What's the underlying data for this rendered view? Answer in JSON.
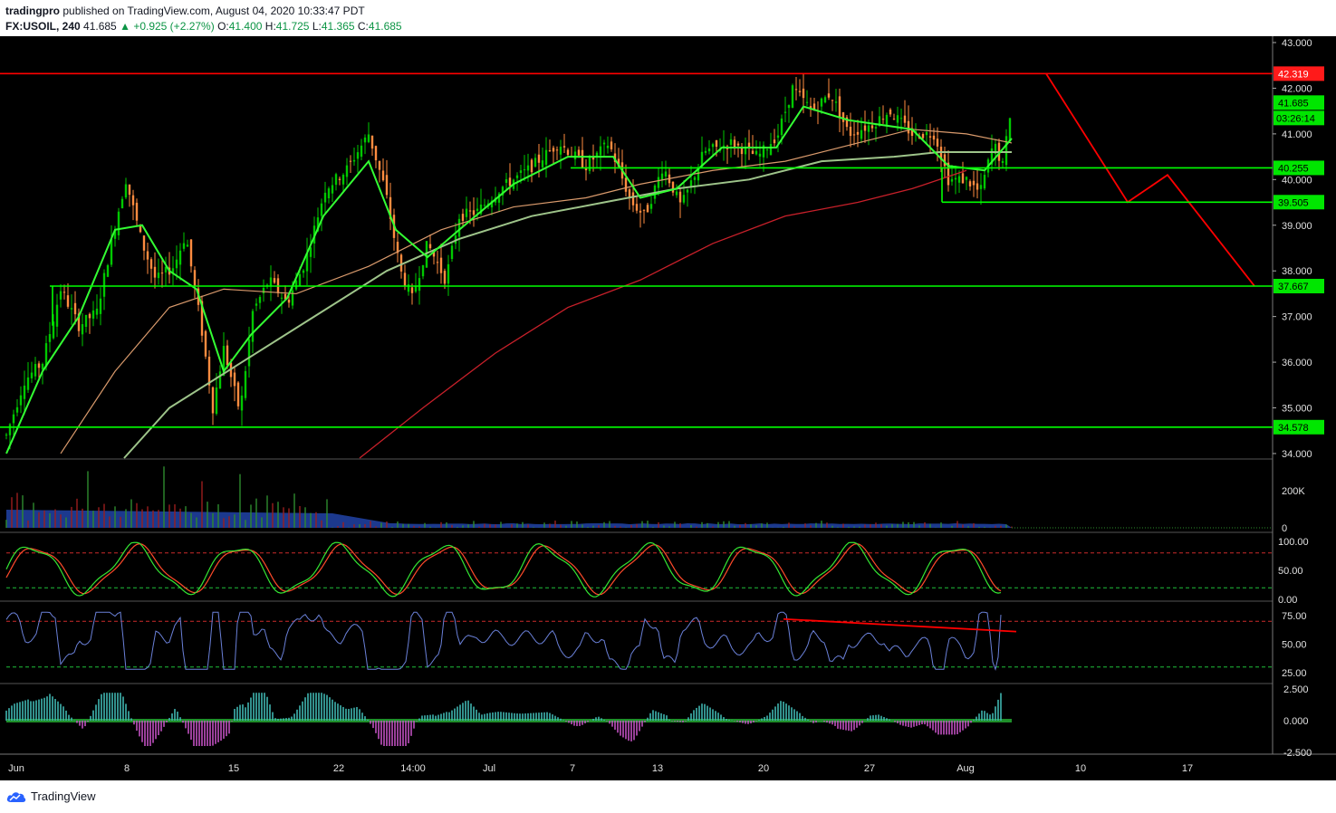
{
  "header": {
    "publisher": "tradingpro",
    "published_text": "published on TradingView.com, August 04, 2020 10:33:47 PDT",
    "symbol": "FX:USOIL, 240",
    "last": "41.685",
    "change": "+0.925 (+2.27%)",
    "o_label": "O:",
    "o_value": "41.400",
    "h_label": "H:",
    "h_value": "41.725",
    "l_label": "L:",
    "l_value": "41.365",
    "c_label": "C:",
    "c_value": "41.685"
  },
  "footer": {
    "brand": "TradingView"
  },
  "colors": {
    "green_line": "#00ff00",
    "red_line": "#ff0000",
    "bull": "#00c800",
    "bear": "#ff8c40",
    "volume_area": "#1e3c96",
    "rsi_line": "#6a80d8",
    "price_label_green": "#00e600",
    "price_label_red": "#ff1a1a"
  },
  "chart_data": {
    "type": "line",
    "price_axis": {
      "ticks": [
        43.0,
        42.0,
        41.0,
        40.0,
        39.0,
        38.0,
        37.0,
        36.0,
        35.0,
        34.0
      ],
      "ylim": [
        33.88,
        43.0
      ]
    },
    "x_ticks": [
      "Jun",
      "8",
      "15",
      "22",
      "14:00",
      "Jul",
      "7",
      "13",
      "20",
      "27",
      "Aug",
      "10",
      "17"
    ],
    "horizontal_levels": [
      {
        "value": 42.319,
        "label": "42.319",
        "color": "red"
      },
      {
        "value": 40.255,
        "label": "40.255",
        "color": "green"
      },
      {
        "value": 39.505,
        "label": "39.505",
        "color": "green"
      },
      {
        "value": 37.667,
        "label": "37.667",
        "color": "green"
      },
      {
        "value": 34.578,
        "label": "34.578",
        "color": "green"
      }
    ],
    "last_price": {
      "value": 41.685,
      "label": "41.685",
      "countdown": "03:26:14"
    },
    "price_path": [
      {
        "x": 0,
        "y": 34.4
      },
      {
        "x": 20,
        "y": 35.6
      },
      {
        "x": 40,
        "y": 36.0
      },
      {
        "x": 60,
        "y": 37.6
      },
      {
        "x": 80,
        "y": 36.8
      },
      {
        "x": 100,
        "y": 37.1
      },
      {
        "x": 120,
        "y": 39.0
      },
      {
        "x": 132,
        "y": 40.0
      },
      {
        "x": 150,
        "y": 38.6
      },
      {
        "x": 165,
        "y": 37.8
      },
      {
        "x": 185,
        "y": 38.1
      },
      {
        "x": 198,
        "y": 38.8
      },
      {
        "x": 215,
        "y": 36.8
      },
      {
        "x": 228,
        "y": 35.0
      },
      {
        "x": 240,
        "y": 36.3
      },
      {
        "x": 258,
        "y": 34.9
      },
      {
        "x": 272,
        "y": 37.1
      },
      {
        "x": 290,
        "y": 37.8
      },
      {
        "x": 310,
        "y": 37.3
      },
      {
        "x": 330,
        "y": 38.2
      },
      {
        "x": 352,
        "y": 39.8
      },
      {
        "x": 375,
        "y": 40.2
      },
      {
        "x": 400,
        "y": 41.0
      },
      {
        "x": 418,
        "y": 39.8
      },
      {
        "x": 435,
        "y": 38.0
      },
      {
        "x": 448,
        "y": 37.4
      },
      {
        "x": 465,
        "y": 38.6
      },
      {
        "x": 485,
        "y": 37.8
      },
      {
        "x": 500,
        "y": 39.2
      },
      {
        "x": 520,
        "y": 39.3
      },
      {
        "x": 545,
        "y": 39.8
      },
      {
        "x": 575,
        "y": 40.2
      },
      {
        "x": 610,
        "y": 40.8
      },
      {
        "x": 640,
        "y": 40.3
      },
      {
        "x": 665,
        "y": 40.8
      },
      {
        "x": 690,
        "y": 39.5
      },
      {
        "x": 705,
        "y": 39.2
      },
      {
        "x": 725,
        "y": 40.3
      },
      {
        "x": 745,
        "y": 39.4
      },
      {
        "x": 770,
        "y": 40.6
      },
      {
        "x": 800,
        "y": 40.8
      },
      {
        "x": 830,
        "y": 40.5
      },
      {
        "x": 852,
        "y": 41.0
      },
      {
        "x": 868,
        "y": 42.0
      },
      {
        "x": 890,
        "y": 41.5
      },
      {
        "x": 910,
        "y": 41.9
      },
      {
        "x": 930,
        "y": 41.0
      },
      {
        "x": 955,
        "y": 41.2
      },
      {
        "x": 975,
        "y": 41.5
      },
      {
        "x": 1000,
        "y": 41.0
      },
      {
        "x": 1025,
        "y": 41.0
      },
      {
        "x": 1040,
        "y": 40.0
      },
      {
        "x": 1060,
        "y": 40.0
      },
      {
        "x": 1075,
        "y": 39.7
      },
      {
        "x": 1090,
        "y": 40.8
      },
      {
        "x": 1100,
        "y": 40.3
      },
      {
        "x": 1110,
        "y": 41.7
      }
    ],
    "ema_fast": [
      {
        "x": 0,
        "y": 34.0
      },
      {
        "x": 40,
        "y": 35.8
      },
      {
        "x": 80,
        "y": 37.0
      },
      {
        "x": 120,
        "y": 38.9
      },
      {
        "x": 150,
        "y": 39.0
      },
      {
        "x": 180,
        "y": 38.0
      },
      {
        "x": 210,
        "y": 37.6
      },
      {
        "x": 240,
        "y": 35.8
      },
      {
        "x": 270,
        "y": 36.6
      },
      {
        "x": 310,
        "y": 37.4
      },
      {
        "x": 350,
        "y": 39.2
      },
      {
        "x": 400,
        "y": 40.4
      },
      {
        "x": 430,
        "y": 38.9
      },
      {
        "x": 465,
        "y": 38.3
      },
      {
        "x": 500,
        "y": 38.9
      },
      {
        "x": 560,
        "y": 39.9
      },
      {
        "x": 620,
        "y": 40.5
      },
      {
        "x": 670,
        "y": 40.5
      },
      {
        "x": 700,
        "y": 39.6
      },
      {
        "x": 740,
        "y": 39.8
      },
      {
        "x": 790,
        "y": 40.7
      },
      {
        "x": 850,
        "y": 40.7
      },
      {
        "x": 880,
        "y": 41.6
      },
      {
        "x": 930,
        "y": 41.3
      },
      {
        "x": 1000,
        "y": 41.1
      },
      {
        "x": 1040,
        "y": 40.3
      },
      {
        "x": 1080,
        "y": 40.2
      },
      {
        "x": 1110,
        "y": 40.9
      }
    ],
    "ma_mid": [
      {
        "x": 60,
        "y": 34.0
      },
      {
        "x": 120,
        "y": 35.8
      },
      {
        "x": 180,
        "y": 37.2
      },
      {
        "x": 240,
        "y": 37.6
      },
      {
        "x": 320,
        "y": 37.5
      },
      {
        "x": 400,
        "y": 38.1
      },
      {
        "x": 480,
        "y": 38.9
      },
      {
        "x": 560,
        "y": 39.4
      },
      {
        "x": 640,
        "y": 39.6
      },
      {
        "x": 700,
        "y": 39.9
      },
      {
        "x": 780,
        "y": 40.2
      },
      {
        "x": 860,
        "y": 40.4
      },
      {
        "x": 940,
        "y": 40.8
      },
      {
        "x": 1000,
        "y": 41.1
      },
      {
        "x": 1060,
        "y": 41.0
      },
      {
        "x": 1110,
        "y": 40.8
      }
    ],
    "ma_slow": [
      {
        "x": 130,
        "y": 33.9
      },
      {
        "x": 180,
        "y": 35.0
      },
      {
        "x": 260,
        "y": 36.0
      },
      {
        "x": 340,
        "y": 37.0
      },
      {
        "x": 420,
        "y": 38.0
      },
      {
        "x": 500,
        "y": 38.7
      },
      {
        "x": 580,
        "y": 39.2
      },
      {
        "x": 660,
        "y": 39.5
      },
      {
        "x": 740,
        "y": 39.8
      },
      {
        "x": 820,
        "y": 40.0
      },
      {
        "x": 900,
        "y": 40.4
      },
      {
        "x": 980,
        "y": 40.5
      },
      {
        "x": 1030,
        "y": 40.6
      },
      {
        "x": 1080,
        "y": 40.6
      },
      {
        "x": 1110,
        "y": 40.6
      }
    ],
    "ma_200": [
      {
        "x": 390,
        "y": 33.9
      },
      {
        "x": 460,
        "y": 35.0
      },
      {
        "x": 540,
        "y": 36.2
      },
      {
        "x": 620,
        "y": 37.2
      },
      {
        "x": 700,
        "y": 37.8
      },
      {
        "x": 780,
        "y": 38.6
      },
      {
        "x": 860,
        "y": 39.2
      },
      {
        "x": 940,
        "y": 39.5
      },
      {
        "x": 1000,
        "y": 39.8
      },
      {
        "x": 1060,
        "y": 40.2
      }
    ],
    "projection": [
      {
        "x": 1148,
        "y": 42.319
      },
      {
        "x": 1238,
        "y": 39.505
      },
      {
        "x": 1282,
        "y": 40.1
      },
      {
        "x": 1378,
        "y": 37.667
      }
    ],
    "volume": {
      "ticks": [
        "200K",
        "0"
      ]
    },
    "stochastic": {
      "ticks": [
        "100.00",
        "50.00",
        "0.00"
      ],
      "levels": [
        80,
        20
      ]
    },
    "rsi": {
      "ticks": [
        "75.00",
        "50.00",
        "25.00"
      ],
      "levels": [
        70,
        30
      ]
    },
    "macd": {
      "ticks": [
        "2.500",
        "0.000",
        "-2.500"
      ]
    }
  }
}
